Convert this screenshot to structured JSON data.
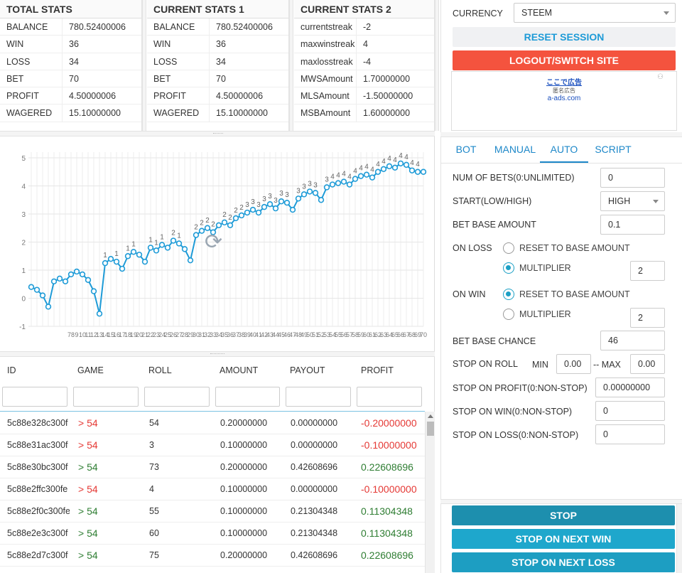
{
  "stats": {
    "total": {
      "title": "TOTAL STATS",
      "rows": [
        {
          "k": "BALANCE",
          "v": "780.52400006"
        },
        {
          "k": "WIN",
          "v": "36"
        },
        {
          "k": "LOSS",
          "v": "34"
        },
        {
          "k": "BET",
          "v": "70"
        },
        {
          "k": "PROFIT",
          "v": "4.50000006"
        },
        {
          "k": "WAGERED",
          "v": "15.10000000"
        }
      ]
    },
    "current1": {
      "title": "CURRENT STATS 1",
      "rows": [
        {
          "k": "BALANCE",
          "v": "780.52400006"
        },
        {
          "k": "WIN",
          "v": "36"
        },
        {
          "k": "LOSS",
          "v": "34"
        },
        {
          "k": "BET",
          "v": "70"
        },
        {
          "k": "PROFIT",
          "v": "4.50000006"
        },
        {
          "k": "WAGERED",
          "v": "15.10000000"
        }
      ]
    },
    "current2": {
      "title": "CURRENT STATS 2",
      "rows": [
        {
          "k": "currentstreak",
          "v": "-2"
        },
        {
          "k": "maxwinstreak",
          "v": "4"
        },
        {
          "k": "maxlosstreak",
          "v": "-4"
        },
        {
          "k": "MWSAmount",
          "v": "1.70000000"
        },
        {
          "k": "MLSAmount",
          "v": "-1.50000000"
        },
        {
          "k": "MSBAmount",
          "v": "1.60000000"
        }
      ]
    }
  },
  "session": {
    "currency_label": "CURRENCY",
    "currency_value": "STEEM",
    "reset_label": "RESET SESSION",
    "logout_label": "LOGOUT/SWITCH SITE",
    "ad_line1": "ここで広告",
    "ad_line2": "匿名広告",
    "ad_line3": "a-ads.com"
  },
  "chart_data": {
    "type": "line",
    "x": [
      1,
      2,
      3,
      4,
      5,
      6,
      7,
      8,
      9,
      10,
      11,
      12,
      13,
      14,
      15,
      16,
      17,
      18,
      19,
      20,
      21,
      22,
      23,
      24,
      25,
      26,
      27,
      28,
      29,
      30,
      31,
      32,
      33,
      34,
      35,
      36,
      37,
      38,
      39,
      40,
      41,
      42,
      43,
      44,
      45,
      46,
      47,
      48,
      49,
      50,
      51,
      52,
      53,
      54,
      55,
      56,
      57,
      58,
      59,
      60,
      61,
      62,
      63,
      64,
      65,
      66,
      67,
      68,
      69,
      70
    ],
    "values": [
      0.4,
      0.3,
      0.1,
      -0.3,
      0.6,
      0.7,
      0.6,
      0.85,
      0.95,
      0.85,
      0.65,
      0.25,
      -0.55,
      1.25,
      1.4,
      1.3,
      1.05,
      1.5,
      1.65,
      1.55,
      1.3,
      1.8,
      1.7,
      1.9,
      1.8,
      2.05,
      1.95,
      1.75,
      1.35,
      2.25,
      2.4,
      2.5,
      2.35,
      2.6,
      2.7,
      2.6,
      2.85,
      2.95,
      3.05,
      3.15,
      3.05,
      3.25,
      3.35,
      3.2,
      3.45,
      3.4,
      3.15,
      3.55,
      3.7,
      3.8,
      3.75,
      3.5,
      3.95,
      4.05,
      4.1,
      4.15,
      4.05,
      4.25,
      4.35,
      4.4,
      4.3,
      4.5,
      4.6,
      4.7,
      4.65,
      4.8,
      4.75,
      4.55,
      4.5,
      4.5
    ],
    "data_labels": [
      {
        "x": 14,
        "text": "1"
      },
      {
        "x": 16,
        "text": "1"
      },
      {
        "x": 18,
        "text": "1"
      },
      {
        "x": 19,
        "text": "1"
      },
      {
        "x": 22,
        "text": "1"
      },
      {
        "x": 23,
        "text": "1"
      },
      {
        "x": 24,
        "text": "1"
      },
      {
        "x": 26,
        "text": "2"
      },
      {
        "x": 27,
        "text": "1"
      },
      {
        "x": 30,
        "text": "2"
      },
      {
        "x": 31,
        "text": "2"
      },
      {
        "x": 32,
        "text": "2"
      },
      {
        "x": 33,
        "text": "2"
      },
      {
        "x": 35,
        "text": "2"
      },
      {
        "x": 36,
        "text": "2"
      },
      {
        "x": 37,
        "text": "2"
      },
      {
        "x": 38,
        "text": "2"
      },
      {
        "x": 39,
        "text": "3"
      },
      {
        "x": 40,
        "text": "3"
      },
      {
        "x": 41,
        "text": "3"
      },
      {
        "x": 42,
        "text": "3"
      },
      {
        "x": 43,
        "text": "3"
      },
      {
        "x": 44,
        "text": "3"
      },
      {
        "x": 45,
        "text": "3"
      },
      {
        "x": 46,
        "text": "3"
      },
      {
        "x": 48,
        "text": "3"
      },
      {
        "x": 49,
        "text": "3"
      },
      {
        "x": 50,
        "text": "3"
      },
      {
        "x": 51,
        "text": "3"
      },
      {
        "x": 53,
        "text": "3"
      },
      {
        "x": 54,
        "text": "4"
      },
      {
        "x": 55,
        "text": "4"
      },
      {
        "x": 56,
        "text": "4"
      },
      {
        "x": 57,
        "text": "4"
      },
      {
        "x": 58,
        "text": "4"
      },
      {
        "x": 59,
        "text": "4"
      },
      {
        "x": 60,
        "text": "4"
      },
      {
        "x": 61,
        "text": "4"
      },
      {
        "x": 62,
        "text": "4"
      },
      {
        "x": 63,
        "text": "4"
      },
      {
        "x": 64,
        "text": "4"
      },
      {
        "x": 65,
        "text": "4"
      },
      {
        "x": 66,
        "text": "4"
      },
      {
        "x": 67,
        "text": "4"
      },
      {
        "x": 68,
        "text": "4"
      },
      {
        "x": 69,
        "text": "4"
      }
    ],
    "x_tick_labels": [
      "78",
      "9",
      "10",
      "11",
      "12",
      "13",
      "14",
      "15",
      "16",
      "17",
      "18",
      "19",
      "20",
      "21",
      "22",
      "23",
      "24",
      "25",
      "26",
      "27",
      "28",
      "29",
      "30",
      "31",
      "32",
      "33",
      "34",
      "35",
      "36",
      "37",
      "38",
      "39",
      "40",
      "41",
      "42",
      "43",
      "44",
      "45",
      "46",
      "47",
      "48",
      "49",
      "50",
      "51",
      "52",
      "53",
      "54",
      "55",
      "56",
      "57",
      "58",
      "59",
      "60",
      "61",
      "62",
      "63",
      "64",
      "65",
      "66",
      "67",
      "68",
      "69",
      "70"
    ],
    "ylim": [
      -1,
      5
    ],
    "y_ticks": [
      -1,
      0,
      1,
      2,
      3,
      4,
      5
    ],
    "grid": true,
    "line_color": "#1e9bd7"
  },
  "table": {
    "headers": [
      "ID",
      "GAME",
      "ROLL",
      "AMOUNT",
      "PAYOUT",
      "PROFIT"
    ],
    "rows": [
      {
        "id": "5c88e328c300f",
        "game": "> 54",
        "roll": "54",
        "amount": "0.20000000",
        "payout": "0.00000000",
        "profit": "-0.20000000",
        "win": false
      },
      {
        "id": "5c88e31ac300f",
        "game": "> 54",
        "roll": "3",
        "amount": "0.10000000",
        "payout": "0.00000000",
        "profit": "-0.10000000",
        "win": false
      },
      {
        "id": "5c88e30bc300f",
        "game": "> 54",
        "roll": "73",
        "amount": "0.20000000",
        "payout": "0.42608696",
        "profit": "0.22608696",
        "win": true
      },
      {
        "id": "5c88e2ffc300fe",
        "game": "> 54",
        "roll": "4",
        "amount": "0.10000000",
        "payout": "0.00000000",
        "profit": "-0.10000000",
        "win": false
      },
      {
        "id": "5c88e2f0c300fe",
        "game": "> 54",
        "roll": "55",
        "amount": "0.10000000",
        "payout": "0.21304348",
        "profit": "0.11304348",
        "win": true
      },
      {
        "id": "5c88e2e3c300f",
        "game": "> 54",
        "roll": "60",
        "amount": "0.10000000",
        "payout": "0.21304348",
        "profit": "0.11304348",
        "win": true
      },
      {
        "id": "5c88e2d7c300f",
        "game": "> 54",
        "roll": "75",
        "amount": "0.20000000",
        "payout": "0.42608696",
        "profit": "0.22608696",
        "win": true
      }
    ]
  },
  "tabs": [
    "BOT",
    "MANUAL",
    "AUTO",
    "SCRIPT"
  ],
  "form": {
    "num_bets_label": "NUM OF BETS(0:UNLIMITED)",
    "num_bets_value": "0",
    "start_label": "START(LOW/HIGH)",
    "start_value": "HIGH",
    "base_amount_label": "BET BASE AMOUNT",
    "base_amount_value": "0.1",
    "on_loss_label": "ON LOSS",
    "reset_base_label": "RESET TO BASE AMOUNT",
    "multiplier_label": "MULTIPLIER",
    "loss_multiplier_value": "2",
    "on_win_label": "ON WIN",
    "win_multiplier_value": "2",
    "base_chance_label": "BET BASE CHANCE",
    "base_chance_value": "46",
    "stop_on_roll_label": "STOP ON ROLL",
    "min_label": "MIN",
    "min_value": "0.00",
    "max_label": "-- MAX",
    "max_value": "0.00",
    "stop_profit_label": "STOP ON PROFIT(0:NON-STOP)",
    "stop_profit_value": "0.00000000",
    "stop_win_label": "STOP ON WIN(0:NON-STOP)",
    "stop_win_value": "0",
    "stop_loss_label": "STOP ON LOSS(0:NON-STOP)",
    "stop_loss_value": "0"
  },
  "buttons": {
    "stop": "STOP",
    "stop_next_win": "STOP ON NEXT WIN",
    "stop_next_loss": "STOP ON NEXT LOSS"
  },
  "colors": {
    "accent": "#1e88c9",
    "logout": "#f4533e",
    "stop_dark": "#1d8fae",
    "stop_light": "#1ea7cc",
    "loss": "#e53935",
    "win": "#2e7d32"
  }
}
